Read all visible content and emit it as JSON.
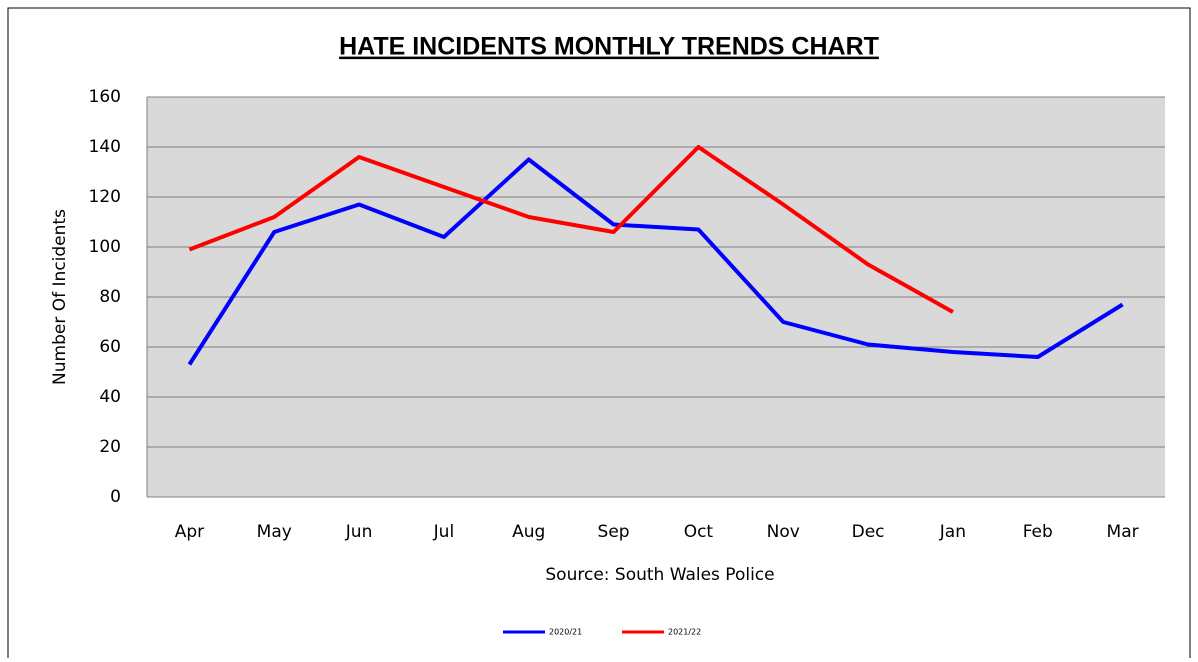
{
  "chart_data": {
    "type": "line",
    "title": "HATE INCIDENTS MONTHLY TRENDS CHART",
    "x_label": "Source: South Wales Police",
    "y_label": "Number Of Incidents",
    "categories": [
      "Apr",
      "May",
      "Jun",
      "Jul",
      "Aug",
      "Sep",
      "Oct",
      "Nov",
      "Dec",
      "Jan",
      "Feb",
      "Mar"
    ],
    "series": [
      {
        "name": "2020/21",
        "color": "#0000ff",
        "values": [
          53,
          106,
          117,
          104,
          135,
          109,
          107,
          70,
          61,
          58,
          56,
          77
        ]
      },
      {
        "name": "2021/22",
        "color": "#ff0000",
        "values": [
          99,
          112,
          136,
          124,
          112,
          106,
          140,
          117,
          93,
          74,
          null,
          null
        ]
      }
    ],
    "ylim": [
      0,
      160
    ],
    "yticks": [
      0,
      20,
      40,
      60,
      80,
      100,
      120,
      140,
      160
    ],
    "grid": true,
    "legend": "bottom"
  }
}
